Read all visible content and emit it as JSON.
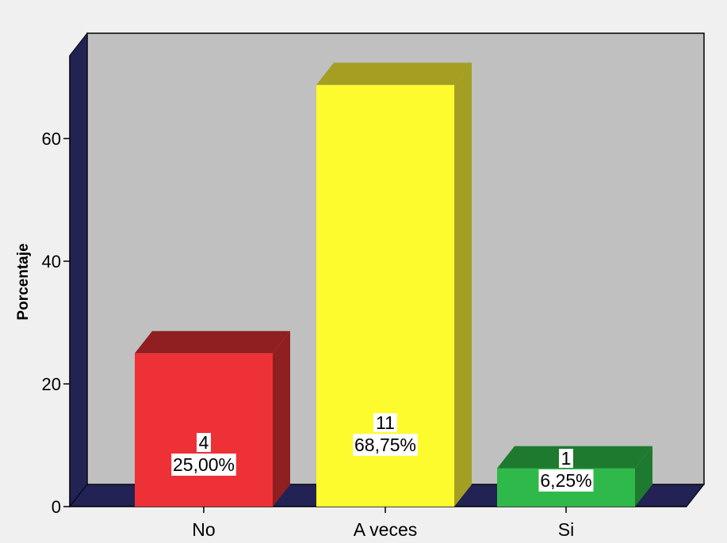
{
  "chart_data": {
    "type": "bar",
    "categories": [
      "No",
      "A veces",
      "Si"
    ],
    "values": [
      25.0,
      68.75,
      6.25
    ],
    "counts": [
      "4",
      "11",
      "1"
    ],
    "percent_labels": [
      "25,00%",
      "68,75%",
      "6,25%"
    ],
    "ylabel": "Porcentaje",
    "ylim": [
      0,
      75
    ],
    "yticks": [
      0,
      20,
      40,
      60
    ],
    "grid": false,
    "legend": "none",
    "three_d": true,
    "colors": {
      "background": "#f0f0f0",
      "plot_back_wall": "#c0c0c0",
      "plot_side_wall": "#222255",
      "bars": [
        {
          "front": "#ee3137",
          "top": "#8f1f21",
          "side": "#8f1f21"
        },
        {
          "front": "#fdfb2e",
          "top": "#a49f22",
          "side": "#a49f22"
        },
        {
          "front": "#2fb94a",
          "top": "#1d7a2e",
          "side": "#1d7a2e"
        }
      ]
    }
  }
}
